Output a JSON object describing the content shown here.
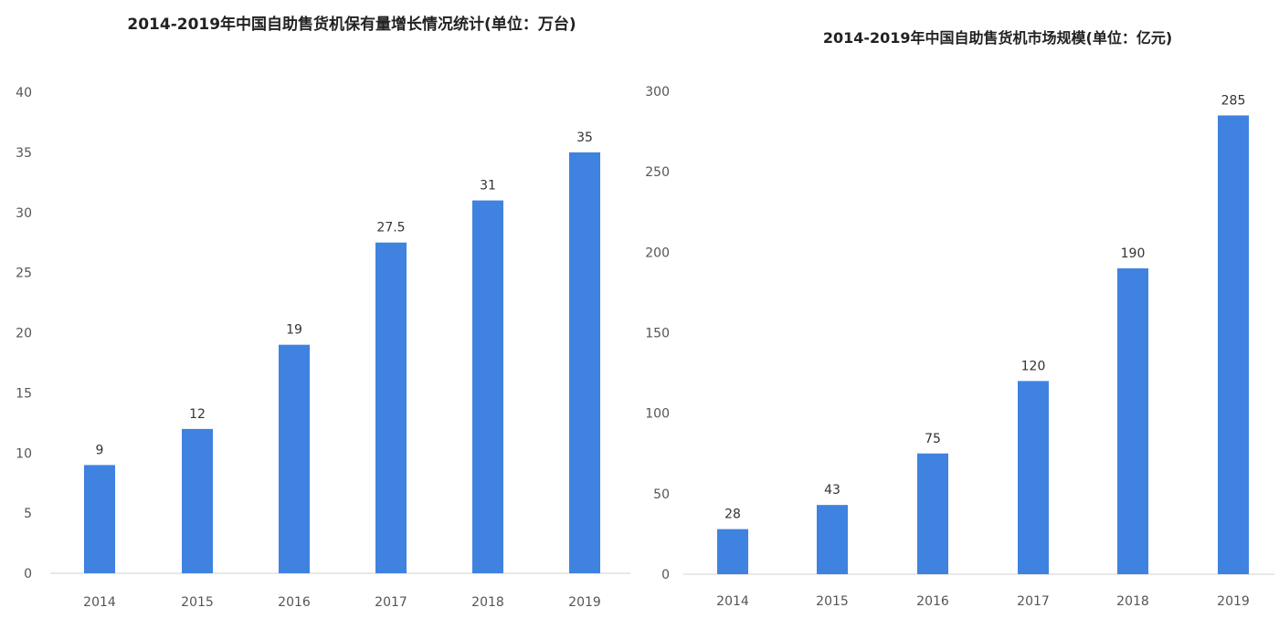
{
  "chart_data": [
    {
      "type": "bar",
      "title": "2014-2019年中国自助售货机保有量增长情况统计(单位：万台)",
      "categories": [
        "2014",
        "2015",
        "2016",
        "2017",
        "2018",
        "2019"
      ],
      "values": [
        9,
        12,
        19,
        27.5,
        31,
        35
      ],
      "data_labels": [
        "9",
        "12",
        "19",
        "27.5",
        "31",
        "35"
      ],
      "ylim": [
        0,
        40
      ],
      "yticks": [
        "0",
        "5",
        "10",
        "15",
        "20",
        "25",
        "30",
        "35",
        "40"
      ],
      "grid": false,
      "bar_color": "#3f82e0"
    },
    {
      "type": "bar",
      "title": "2014-2019年中国自助售货机市场规模(单位：亿元)",
      "categories": [
        "2014",
        "2015",
        "2016",
        "2017",
        "2018",
        "2019"
      ],
      "values": [
        28,
        43,
        75,
        120,
        190,
        285
      ],
      "data_labels": [
        "28",
        "43",
        "75",
        "120",
        "190",
        "285"
      ],
      "ylim": [
        0,
        300
      ],
      "yticks": [
        "0",
        "50",
        "100",
        "150",
        "200",
        "250",
        "300"
      ],
      "grid": false,
      "bar_color": "#3f82e0"
    }
  ]
}
